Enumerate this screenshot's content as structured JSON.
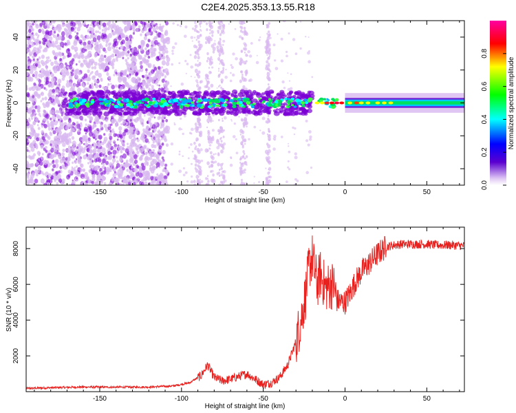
{
  "title": "C2E4.2025.353.13.55.R18",
  "colors": {
    "axis": "#000000",
    "snr_line": "#e8211e",
    "spectrum_faint": "#d8b8f0",
    "spectrum_mid": "#7a00d4",
    "spectrum_core": "#00e060"
  },
  "chart_data": [
    {
      "type": "heatmap",
      "name": "spectrogram",
      "xlabel": "Height of straight line (km)",
      "ylabel": "Frequency (Hz)",
      "xlim": [
        -195,
        73
      ],
      "ylim": [
        -50,
        50
      ],
      "x_ticks": [
        -150,
        -100,
        -50,
        0,
        50
      ],
      "x_tick_labels": [
        "-150",
        "-100",
        "-50",
        "0",
        "50"
      ],
      "y_ticks": [
        -40,
        -20,
        0,
        20,
        40
      ],
      "y_tick_labels": [
        "-40",
        "-20",
        "0",
        "20",
        "40"
      ],
      "band_center_hz": 0,
      "colorbar": {
        "label": "Normalized spectral amplitude",
        "range": [
          0,
          1
        ],
        "ticks": [
          0.0,
          0.2,
          0.4,
          0.6,
          0.8
        ],
        "tick_labels": [
          "0.0",
          "0.2",
          "0.4",
          "0.6",
          "0.8"
        ],
        "colormap": [
          "#ffffff",
          "#5a00d0",
          "#0000ff",
          "#00ffff",
          "#00ff00",
          "#ffff00",
          "#ff0000",
          "#ff00a0"
        ]
      }
    },
    {
      "type": "line",
      "name": "snr",
      "xlabel": "Height of straight line (km)",
      "ylabel": "SNR (10 * v/v)",
      "xlim": [
        -195,
        73
      ],
      "ylim": [
        0,
        9200
      ],
      "x_ticks": [
        -150,
        -100,
        -50,
        0,
        50
      ],
      "x_tick_labels": [
        "-150",
        "-100",
        "-50",
        "0",
        "50"
      ],
      "y_ticks": [
        2000,
        4000,
        6000,
        8000
      ],
      "y_tick_labels": [
        "2000",
        "4000",
        "6000",
        "8000"
      ],
      "series": [
        {
          "name": "SNR",
          "x": [
            -195,
            -180,
            -160,
            -140,
            -120,
            -105,
            -95,
            -88,
            -84,
            -80,
            -75,
            -70,
            -60,
            -55,
            -50,
            -45,
            -40,
            -35,
            -30,
            -27,
            -24,
            -22,
            -20,
            -17,
            -15,
            -12,
            -10,
            -7,
            -5,
            -2,
            0,
            3,
            6,
            10,
            15,
            20,
            25,
            30,
            35,
            40,
            45,
            50,
            55,
            60,
            65,
            73
          ],
          "values": [
            180,
            220,
            260,
            250,
            260,
            320,
            500,
            900,
            1500,
            800,
            600,
            700,
            1000,
            700,
            400,
            500,
            800,
            1500,
            2800,
            4000,
            5500,
            7000,
            7500,
            6000,
            6600,
            5800,
            5900,
            6000,
            5100,
            5000,
            5000,
            5500,
            6100,
            6700,
            7200,
            7700,
            8100,
            8200,
            8250,
            8250,
            8250,
            8250,
            8200,
            8200,
            8200,
            8150
          ]
        }
      ]
    }
  ]
}
